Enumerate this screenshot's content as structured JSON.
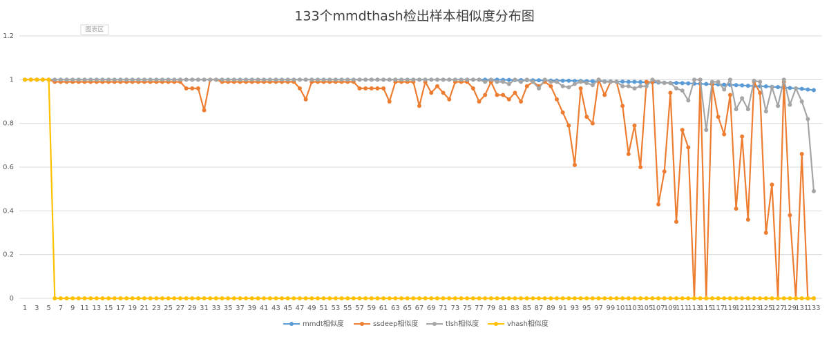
{
  "chart_data": {
    "type": "line",
    "title": "133个mmdthash检出样本相似度分布图",
    "annotation": "图表区",
    "categories": [
      "1",
      null,
      "3",
      null,
      "5",
      null,
      "7",
      null,
      "9",
      null,
      "11",
      null,
      "13",
      null,
      "15",
      null,
      "17",
      null,
      "19",
      null,
      "21",
      null,
      "23",
      null,
      "25",
      null,
      "27",
      null,
      "29",
      null,
      "31",
      null,
      "33",
      null,
      "35",
      null,
      "37",
      null,
      "39",
      null,
      "41",
      null,
      "43",
      null,
      "45",
      null,
      "47",
      null,
      "49",
      null,
      "51",
      null,
      "53",
      null,
      "55",
      null,
      "57",
      null,
      "59",
      null,
      "61",
      null,
      "63",
      null,
      "65",
      null,
      "67",
      null,
      "69",
      null,
      "71",
      null,
      "73",
      null,
      "75",
      null,
      "77",
      null,
      "79",
      null,
      "81",
      null,
      "83",
      null,
      "85",
      null,
      "87",
      null,
      "89",
      null,
      "91",
      null,
      "93",
      null,
      "95",
      null,
      "97",
      null,
      "99",
      null,
      "101",
      null,
      "103",
      null,
      "105",
      null,
      "107",
      null,
      "109",
      null,
      "111",
      null,
      "113",
      null,
      "115",
      null,
      "117",
      null,
      "119",
      null,
      "121",
      null,
      "123",
      null,
      "125",
      null,
      "127",
      null,
      "129",
      null,
      "131",
      null,
      "133"
    ],
    "ylim": [
      0,
      1.2
    ],
    "yticks": [
      0,
      0.2,
      0.4,
      0.6,
      0.8,
      1,
      1.2
    ],
    "grid": true,
    "legend": "bottom",
    "series": [
      {
        "name": "mmdt相似度",
        "color": "#5b9bd5",
        "values": [
          1,
          1,
          1,
          1,
          1,
          1,
          1,
          1,
          1,
          1,
          1,
          1,
          1,
          1,
          1,
          1,
          1,
          1,
          1,
          1,
          1,
          1,
          1,
          1,
          1,
          1,
          1,
          1,
          1,
          1,
          1,
          1,
          1,
          1,
          1,
          1,
          1,
          1,
          1,
          1,
          1,
          1,
          1,
          1,
          1,
          1,
          1,
          1,
          1,
          1,
          1,
          1,
          1,
          1,
          1,
          1,
          1,
          1,
          1,
          1,
          1,
          1,
          1,
          1,
          1,
          1,
          1,
          1,
          1,
          1,
          1,
          1,
          1,
          1,
          1,
          1,
          1,
          1,
          1,
          1,
          0.999,
          0.999,
          0.998,
          0.998,
          0.998,
          0.997,
          0.997,
          0.997,
          0.996,
          0.996,
          0.995,
          0.995,
          0.994,
          0.994,
          0.993,
          0.993,
          0.993,
          0.992,
          0.992,
          0.991,
          0.991,
          0.99,
          0.99,
          0.989,
          0.988,
          0.988,
          0.987,
          0.986,
          0.985,
          0.985,
          0.984,
          0.983,
          0.982,
          0.981,
          0.98,
          0.979,
          0.978,
          0.977,
          0.976,
          0.975,
          0.974,
          0.972,
          0.971,
          0.97,
          0.969,
          0.967,
          0.966,
          0.964,
          0.962,
          0.96,
          0.958,
          0.955,
          0.952
        ]
      },
      {
        "name": "ssdeep相似度",
        "color": "#ed7d31",
        "values": [
          1,
          1,
          1,
          1,
          1,
          0.99,
          0.99,
          0.99,
          0.99,
          0.99,
          0.99,
          0.99,
          0.99,
          0.99,
          0.99,
          0.99,
          0.99,
          0.99,
          0.99,
          0.99,
          0.99,
          0.99,
          0.99,
          0.99,
          0.99,
          0.99,
          0.99,
          0.96,
          0.96,
          0.96,
          0.86,
          1,
          1,
          0.99,
          0.99,
          0.99,
          0.99,
          0.99,
          0.99,
          0.99,
          0.99,
          0.99,
          0.99,
          0.99,
          0.99,
          0.99,
          0.96,
          0.91,
          0.99,
          0.99,
          0.99,
          0.99,
          0.99,
          0.99,
          0.99,
          0.99,
          0.96,
          0.96,
          0.96,
          0.96,
          0.96,
          0.9,
          0.99,
          0.99,
          0.99,
          0.99,
          0.88,
          0.99,
          0.94,
          0.97,
          0.94,
          0.91,
          0.99,
          0.99,
          0.99,
          0.96,
          0.9,
          0.93,
          0.99,
          0.93,
          0.93,
          0.91,
          0.94,
          0.9,
          0.97,
          0.99,
          0.97,
          0.99,
          0.97,
          0.91,
          0.85,
          0.79,
          0.61,
          0.96,
          0.83,
          0.8,
          1,
          0.93,
          0.99,
          0.99,
          0.88,
          0.66,
          0.79,
          0.6,
          0.99,
          0.99,
          0.43,
          0.58,
          0.94,
          0.35,
          0.77,
          0.69,
          0,
          1,
          0,
          0.98,
          0.83,
          0.75,
          0.93,
          0.41,
          0.74,
          0.36,
          0.99,
          0.94,
          0.3,
          0.52,
          0,
          0.99,
          0.38,
          0,
          0.66,
          0,
          0
        ]
      },
      {
        "name": "tlsh相似度",
        "color": "#a5a5a5",
        "values": [
          1,
          1,
          1,
          1,
          1,
          1,
          1,
          1,
          1,
          1,
          1,
          1,
          1,
          1,
          1,
          1,
          1,
          1,
          1,
          1,
          1,
          1,
          1,
          1,
          1,
          1,
          1,
          1,
          1,
          1,
          1,
          1,
          1,
          1,
          1,
          1,
          1,
          1,
          1,
          1,
          1,
          1,
          1,
          1,
          1,
          1,
          1,
          1,
          1,
          1,
          1,
          1,
          1,
          1,
          1,
          1,
          1,
          1,
          1,
          1,
          1,
          1,
          1,
          1,
          1,
          1,
          1,
          1,
          1,
          1,
          1,
          1,
          1,
          1,
          1,
          1,
          1,
          0.99,
          1,
          0.99,
          0.99,
          0.98,
          1,
          0.99,
          1,
          0.99,
          0.96,
          1,
          0.99,
          0.99,
          0.97,
          0.965,
          0.98,
          0.99,
          0.985,
          0.975,
          1,
          0.99,
          0.99,
          0.99,
          0.97,
          0.97,
          0.96,
          0.97,
          0.97,
          1,
          0.99,
          0.985,
          0.985,
          0.96,
          0.95,
          0.905,
          1,
          1,
          0.77,
          0.99,
          0.99,
          0.955,
          1,
          0.865,
          0.915,
          0.865,
          0.995,
          0.99,
          0.855,
          0.965,
          0.88,
          1,
          0.885,
          0.96,
          0.9,
          0.82,
          0.49
        ]
      },
      {
        "name": "vhash相似度",
        "color": "#ffc000",
        "values": [
          1,
          1,
          1,
          1,
          1,
          0,
          0,
          0,
          0,
          0,
          0,
          0,
          0,
          0,
          0,
          0,
          0,
          0,
          0,
          0,
          0,
          0,
          0,
          0,
          0,
          0,
          0,
          0,
          0,
          0,
          0,
          0,
          0,
          0,
          0,
          0,
          0,
          0,
          0,
          0,
          0,
          0,
          0,
          0,
          0,
          0,
          0,
          0,
          0,
          0,
          0,
          0,
          0,
          0,
          0,
          0,
          0,
          0,
          0,
          0,
          0,
          0,
          0,
          0,
          0,
          0,
          0,
          0,
          0,
          0,
          0,
          0,
          0,
          0,
          0,
          0,
          0,
          0,
          0,
          0,
          0,
          0,
          0,
          0,
          0,
          0,
          0,
          0,
          0,
          0,
          0,
          0,
          0,
          0,
          0,
          0,
          0,
          0,
          0,
          0,
          0,
          0,
          0,
          0,
          0,
          0,
          0,
          0,
          0,
          0,
          0,
          0,
          0,
          0,
          0,
          0,
          0,
          0,
          0,
          0,
          0,
          0,
          0,
          0,
          0,
          0,
          0,
          0,
          0,
          0,
          0,
          0,
          0
        ]
      }
    ]
  }
}
